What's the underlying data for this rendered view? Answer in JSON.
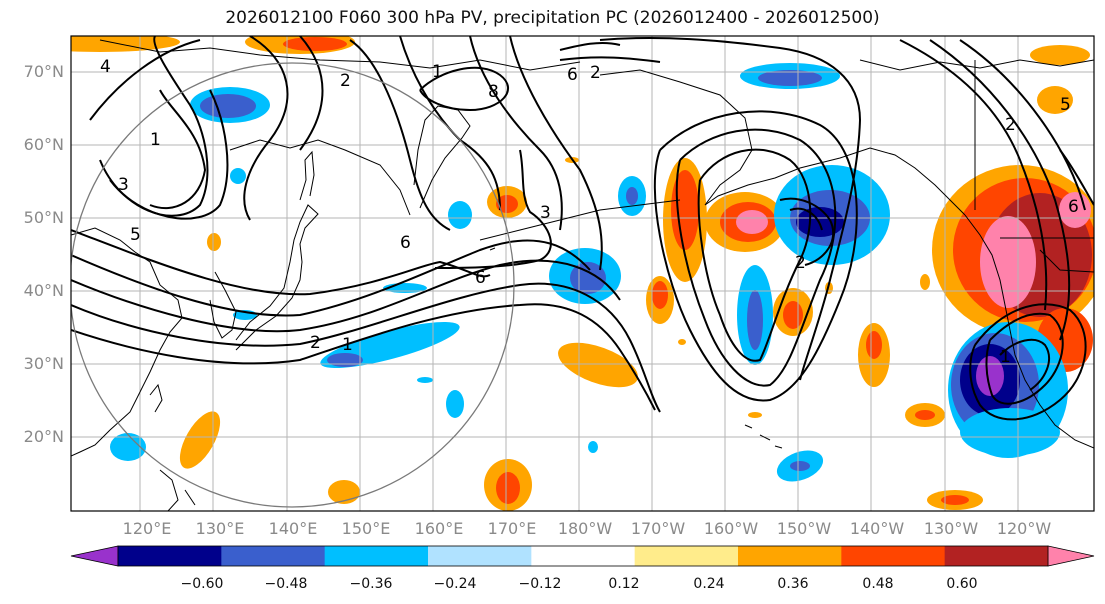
{
  "title": "2026012100 F060 300 hPa PV, precipitation PC (2026012400 - 2026012500)",
  "map": {
    "lat_labels": [
      "70°N",
      "60°N",
      "50°N",
      "40°N",
      "30°N",
      "20°N"
    ],
    "lon_labels": [
      "120°E",
      "130°E",
      "140°E",
      "150°E",
      "160°E",
      "170°E",
      "180°W",
      "170°W",
      "160°W",
      "150°W",
      "140°W",
      "130°W",
      "120°W"
    ],
    "lat_range": [
      10,
      75
    ],
    "lon_range": [
      114,
      254
    ],
    "pv_contour_labels": [
      "2",
      "4",
      "6",
      "8",
      "1",
      "2",
      "3",
      "5",
      "6",
      "1",
      "2",
      "6",
      "1",
      "2",
      "5",
      "6",
      "1",
      "2",
      "3"
    ]
  },
  "colorbar": {
    "ticks": [
      "−0.60",
      "−0.48",
      "−0.36",
      "−0.24",
      "−0.12",
      "0.12",
      "0.24",
      "0.36",
      "0.48",
      "0.60"
    ],
    "colors": [
      "#9932cc",
      "#00008b",
      "#3a5fcd",
      "#00bfff",
      "#b0e2ff",
      "#ffffff",
      "#ffec8b",
      "#ffa500",
      "#ff4500",
      "#b22222",
      "#ff82ab"
    ]
  }
}
